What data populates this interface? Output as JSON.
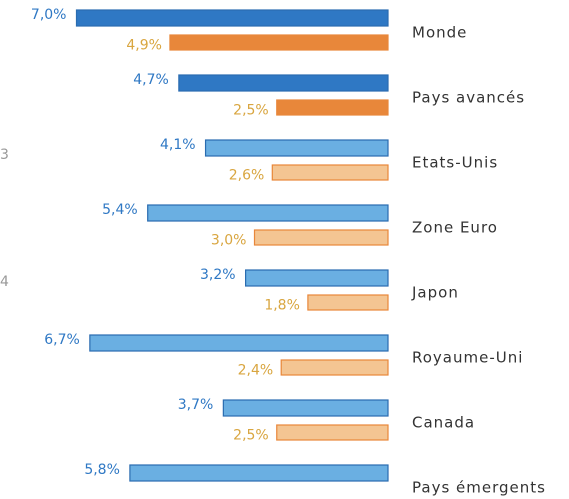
{
  "chart_data": {
    "type": "bar",
    "orientation": "horizontal",
    "categories": [
      "Monde",
      "Pays avancés",
      "Etats-Unis",
      "Zone Euro",
      "Japon",
      "Royaume-Uni",
      "Canada",
      "Pays émergents"
    ],
    "series": [
      {
        "colors": [
          "#2f78c4",
          "#2f78c4",
          "#6aafe2",
          "#6aafe2",
          "#6aafe2",
          "#6aafe2",
          "#6aafe2",
          "#6aafe2"
        ],
        "values": [
          7.0,
          4.7,
          4.1,
          5.4,
          3.2,
          6.7,
          3.7,
          5.8
        ],
        "value_labels": [
          "7,0%",
          "4,7%",
          "4,1%",
          "5,4%",
          "3,2%",
          "6,7%",
          "3,7%",
          "5,8%"
        ]
      },
      {
        "colors": [
          "#e8873a",
          "#e8873a",
          "#f4c592",
          "#f4c592",
          "#f4c592",
          "#f4c592",
          "#f4c592",
          "#f4c592"
        ],
        "values": [
          4.9,
          2.5,
          2.6,
          3.0,
          1.8,
          2.4,
          2.5,
          null
        ],
        "value_labels": [
          "4,9%",
          "2,5%",
          "2,6%",
          "3,0%",
          "1,8%",
          "2,4%",
          "2,5%",
          null
        ]
      }
    ],
    "annotations": [
      "3",
      "4"
    ]
  }
}
